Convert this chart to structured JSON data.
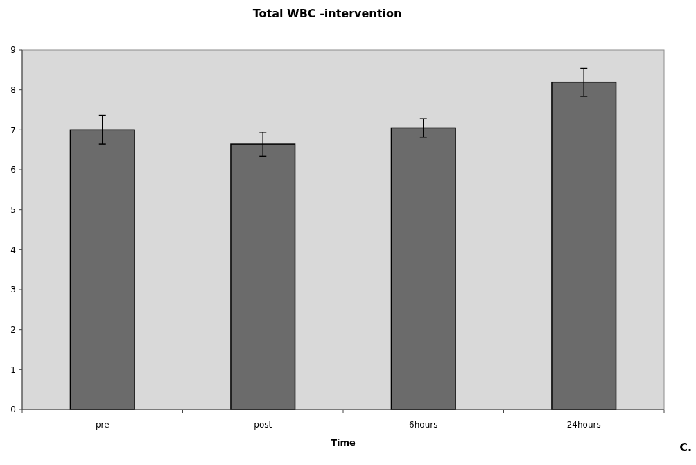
{
  "chart_data": {
    "type": "bar",
    "title": "Total WBC -intervention",
    "xlabel": "Time",
    "categories": [
      "pre",
      "post",
      "6hours",
      "24hours"
    ],
    "values": [
      7.0,
      6.64,
      7.05,
      8.19
    ],
    "errors": [
      0.36,
      0.3,
      0.23,
      0.35
    ],
    "color": "#6b6b6b",
    "ylim": [
      0,
      9
    ],
    "yticks": [
      0,
      1,
      2,
      3,
      4,
      5,
      6,
      7,
      8,
      9
    ],
    "annotations": [
      "C."
    ]
  }
}
